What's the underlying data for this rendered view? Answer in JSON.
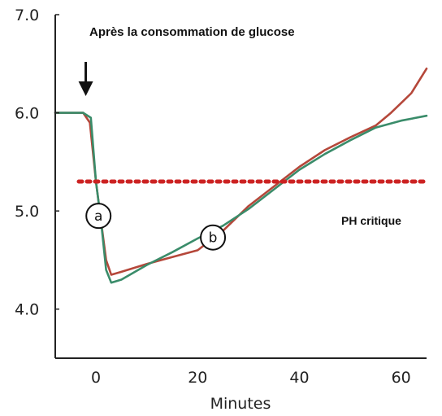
{
  "chart_data": {
    "type": "line",
    "title": "Après la consommation de glucose",
    "xlabel": "Minutes",
    "ylabel": "",
    "xlim": [
      -8,
      65
    ],
    "ylim": [
      3.5,
      7.0
    ],
    "x_ticks": [
      "0",
      "20",
      "40",
      "60"
    ],
    "y_ticks": [
      "4.0",
      "5.0",
      "6.0",
      "7.0"
    ],
    "grid": false,
    "threshold": {
      "label": "PH critique",
      "value": 5.3,
      "color": "#cc2222"
    },
    "markers": [
      {
        "label": "a",
        "x": 0.5,
        "y": 4.95
      },
      {
        "label": "b",
        "x": 23,
        "y": 4.73
      }
    ],
    "arrow_x": -2,
    "series": [
      {
        "color": "#b5473a",
        "x": [
          -8,
          -2.5,
          -1.2,
          0,
          1,
          2,
          3,
          5,
          10,
          15,
          20,
          25,
          30,
          35,
          40,
          45,
          50,
          55,
          58,
          62,
          65
        ],
        "y": [
          6.0,
          6.0,
          5.9,
          5.3,
          4.9,
          4.5,
          4.35,
          4.38,
          4.46,
          4.53,
          4.6,
          4.8,
          5.05,
          5.25,
          5.45,
          5.62,
          5.75,
          5.87,
          6.0,
          6.2,
          6.45
        ]
      },
      {
        "color": "#3a8c6a",
        "x": [
          -8,
          -2.5,
          -1.0,
          0,
          1,
          2,
          3,
          5,
          10,
          15,
          20,
          25,
          30,
          35,
          40,
          45,
          50,
          55,
          60,
          65
        ],
        "y": [
          6.0,
          6.0,
          5.95,
          5.3,
          4.9,
          4.4,
          4.27,
          4.3,
          4.45,
          4.58,
          4.72,
          4.85,
          5.02,
          5.22,
          5.42,
          5.58,
          5.72,
          5.85,
          5.92,
          5.97
        ]
      }
    ]
  }
}
